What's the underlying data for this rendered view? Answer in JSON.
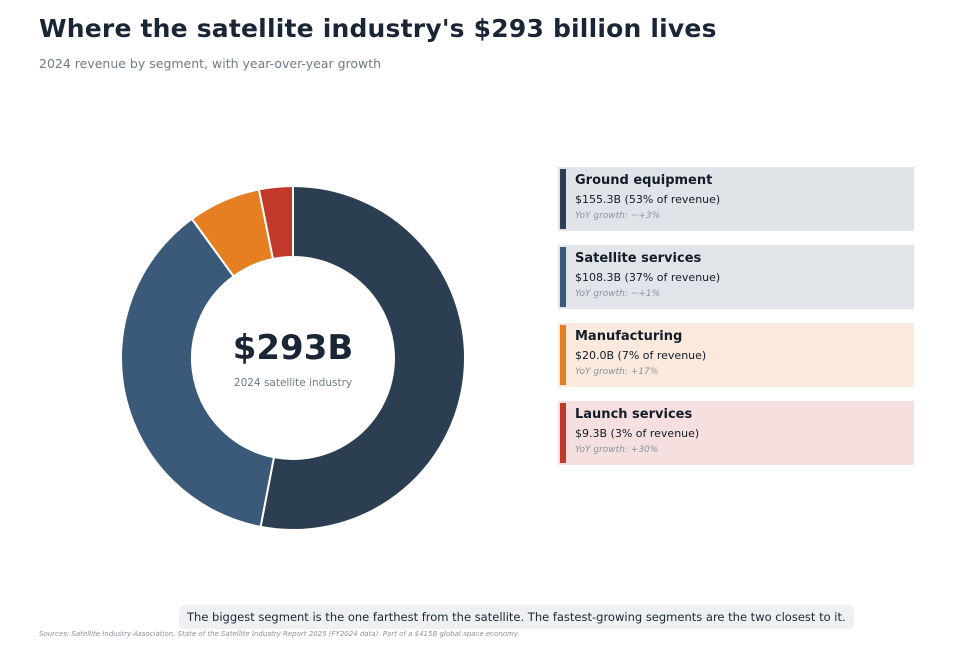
{
  "title": "Where the satellite industry's $293 billion lives",
  "subtitle": "2024 revenue by segment, with year-over-year growth",
  "center": {
    "value": "$293B",
    "label": "2024 satellite industry"
  },
  "chart_data": {
    "type": "pie",
    "title": "Where the satellite industry's $293 billion lives",
    "subtitle": "2024 revenue by segment, with year-over-year growth",
    "total": 293,
    "categories": [
      "Ground equipment",
      "Satellite services",
      "Manufacturing",
      "Launch services"
    ],
    "values": [
      155.3,
      108.3,
      20.0,
      9.3
    ],
    "share_percent": [
      53,
      37,
      7,
      3
    ],
    "colors": [
      "#2c3e52",
      "#3b5978",
      "#e67f22",
      "#c0392b"
    ],
    "legend_position": "right"
  },
  "segments": [
    {
      "name": "Ground equipment",
      "value": "$155.3B  (53% of revenue)",
      "growth": "YoY growth: ~+3%",
      "color": "#2c3e52",
      "bg": "#e0e4e8"
    },
    {
      "name": "Satellite services",
      "value": "$108.3B  (37% of revenue)",
      "growth": "YoY growth: ~+1%",
      "color": "#3b5978",
      "bg": "#e1e5e9"
    },
    {
      "name": "Manufacturing",
      "value": "$20.0B  (7% of revenue)",
      "growth": "YoY growth: +17%",
      "color": "#e67f22",
      "bg": "#fae9dc"
    },
    {
      "name": "Launch services",
      "value": "$9.3B  (3% of revenue)",
      "growth": "YoY growth: +30%",
      "color": "#c0392b",
      "bg": "#f5e0df"
    }
  ],
  "callout": "The biggest segment is the one farthest from the satellite. The fastest-growing segments are the two closest to it.",
  "sources": "Sources: Satellite Industry Association, State of the Satellite Industry Report 2025 (FY2024 data). Part of a $415B global space economy."
}
